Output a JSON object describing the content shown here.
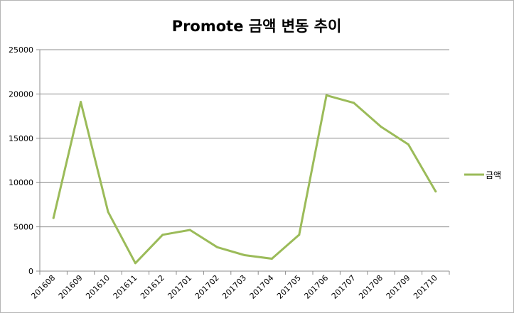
{
  "chart_data": {
    "type": "line",
    "title": "Promote 금액 변동 추이",
    "xlabel": "",
    "ylabel": "",
    "categories": [
      "201608",
      "201609",
      "201610",
      "201611",
      "201612",
      "201701",
      "201702",
      "201703",
      "201704",
      "201705",
      "201706",
      "201707",
      "201708",
      "201709",
      "201710"
    ],
    "series": [
      {
        "name": "금액",
        "color": "#9bbb59",
        "values": [
          6000,
          19100,
          6700,
          900,
          4100,
          4650,
          2700,
          1800,
          1400,
          4100,
          19850,
          19000,
          16300,
          14300,
          9000
        ]
      }
    ],
    "ylim": [
      0,
      25000
    ],
    "yticks": [
      "0",
      "5000",
      "10000",
      "15000",
      "20000",
      "25000"
    ],
    "grid": true,
    "legend": "right"
  }
}
